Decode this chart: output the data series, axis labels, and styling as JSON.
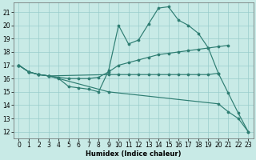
{
  "xlabel": "Humidex (Indice chaleur)",
  "bg_color": "#c8eae6",
  "grid_color": "#99cccc",
  "line_color": "#2e7d72",
  "xlim": [
    -0.5,
    23.5
  ],
  "ylim": [
    11.5,
    21.7
  ],
  "xticks": [
    0,
    1,
    2,
    3,
    4,
    5,
    6,
    7,
    8,
    9,
    10,
    11,
    12,
    13,
    14,
    15,
    16,
    17,
    18,
    19,
    20,
    21,
    22,
    23
  ],
  "yticks": [
    12,
    13,
    14,
    15,
    16,
    17,
    18,
    19,
    20,
    21
  ],
  "series": [
    {
      "x": [
        0,
        1,
        2,
        3,
        4,
        5,
        6,
        7,
        8,
        9,
        10,
        11,
        12,
        13,
        14,
        15,
        16,
        17,
        18,
        19,
        20
      ],
      "y": [
        17.0,
        16.5,
        16.3,
        16.2,
        16.0,
        15.4,
        15.3,
        15.2,
        15.0,
        16.6,
        20.0,
        18.6,
        18.9,
        20.1,
        21.3,
        21.4,
        20.4,
        20.0,
        19.4,
        18.3,
        16.4
      ]
    },
    {
      "x": [
        0,
        1,
        2,
        3,
        4,
        5,
        6,
        7,
        8,
        9,
        10,
        11,
        12,
        13,
        14,
        15,
        16,
        17,
        18,
        19,
        20,
        21
      ],
      "y": [
        17.0,
        16.5,
        16.3,
        16.2,
        16.1,
        16.0,
        16.0,
        16.0,
        16.1,
        16.5,
        17.0,
        17.2,
        17.4,
        17.6,
        17.8,
        17.9,
        18.0,
        18.1,
        18.2,
        18.3,
        18.4,
        18.5
      ]
    },
    {
      "x": [
        0,
        1,
        2,
        3,
        9,
        20,
        21,
        22,
        23
      ],
      "y": [
        17.0,
        16.5,
        16.3,
        16.2,
        15.0,
        14.1,
        13.5,
        13.0,
        12.0
      ]
    },
    {
      "x": [
        0,
        1,
        2,
        3,
        9,
        10,
        11,
        12,
        13,
        14,
        15,
        16,
        17,
        18,
        19,
        20,
        21,
        22,
        23
      ],
      "y": [
        17.0,
        16.5,
        16.3,
        16.2,
        16.3,
        16.3,
        16.3,
        16.3,
        16.3,
        16.3,
        16.3,
        16.3,
        16.3,
        16.3,
        16.3,
        16.4,
        14.9,
        13.4,
        12.0
      ]
    }
  ]
}
